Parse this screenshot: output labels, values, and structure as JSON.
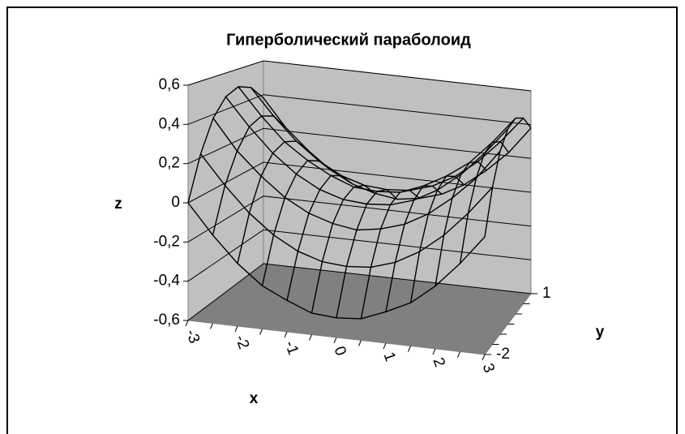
{
  "chart_data": {
    "type": "surface",
    "title": "Гиперболический параболоид",
    "x_label": "x",
    "y_label": "y",
    "z_label": "z",
    "categories": [
      "-3",
      null,
      "-2",
      null,
      "-1",
      null,
      "0",
      null,
      "1",
      null,
      "2",
      null,
      "3"
    ],
    "series": [
      {
        "name": "-2",
        "values": [
          0,
          -0.15,
          -0.28,
          -0.38,
          -0.44,
          -0.49,
          -0.5,
          -0.49,
          -0.44,
          -0.38,
          -0.28,
          -0.15,
          0
        ]
      },
      {
        "name": null,
        "values": [
          0.22,
          0.07,
          -0.06,
          -0.16,
          -0.23,
          -0.27,
          -0.28,
          -0.27,
          -0.23,
          -0.16,
          -0.06,
          0.07,
          0.22
        ]
      },
      {
        "name": null,
        "values": [
          0.38,
          0.22,
          0.1,
          0,
          -0.07,
          -0.11,
          -0.13,
          -0.11,
          -0.07,
          0,
          0.1,
          0.22,
          0.38
        ]
      },
      {
        "name": null,
        "values": [
          0.47,
          0.32,
          0.19,
          0.09,
          0.02,
          -0.02,
          -0.03,
          -0.02,
          0.02,
          0.09,
          0.19,
          0.32,
          0.47
        ]
      },
      {
        "name": null,
        "values": [
          0.5,
          0.35,
          0.22,
          0.13,
          0.06,
          0.01,
          0,
          0.01,
          0.06,
          0.13,
          0.22,
          0.35,
          0.5
        ]
      },
      {
        "name": null,
        "values": [
          0.47,
          0.32,
          0.19,
          0.09,
          0.02,
          -0.02,
          -0.03,
          -0.02,
          0.02,
          0.09,
          0.19,
          0.32,
          0.47
        ]
      },
      {
        "name": "1",
        "values": [
          0.38,
          0.22,
          0.1,
          0,
          -0.07,
          -0.11,
          -0.13,
          -0.11,
          -0.07,
          0,
          0.1,
          0.22,
          0.38
        ]
      }
    ],
    "zlim": [
      -0.6,
      0.6
    ],
    "zticks": [
      {
        "value": -0.6,
        "label": "-0,6"
      },
      {
        "value": -0.4,
        "label": "-0,4"
      },
      {
        "value": -0.2,
        "label": "-0,2"
      },
      0,
      {
        "value": 0.2,
        "label": "0,2"
      },
      {
        "value": 0.4,
        "label": "0,4"
      },
      {
        "value": 0.6,
        "label": "0,6"
      }
    ],
    "wall_color": "#c0c0c0",
    "floor_color": "#808080",
    "line_color": "#000000",
    "grid": true
  }
}
